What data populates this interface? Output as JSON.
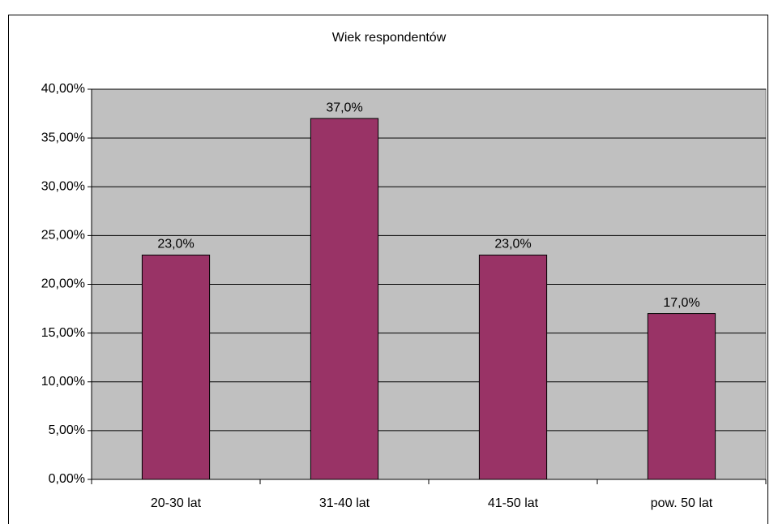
{
  "chart_data": {
    "type": "bar",
    "title": "Wiek respondentów",
    "categories": [
      "20-30 lat",
      "31-40 lat",
      "41-50 lat",
      "pow. 50 lat"
    ],
    "values": [
      23,
      37,
      23,
      17
    ],
    "value_labels": [
      "23,0%",
      "37,0%",
      "23,0%",
      "17,0%"
    ],
    "color": "#993366",
    "ylim": [
      0,
      40
    ],
    "yticks": [
      {
        "value": 0,
        "label": "0,00%"
      },
      {
        "value": 5,
        "label": "5,00%"
      },
      {
        "value": 10,
        "label": "10,00%"
      },
      {
        "value": 15,
        "label": "15,00%"
      },
      {
        "value": 20,
        "label": "20,00%"
      },
      {
        "value": 25,
        "label": "25,00%"
      },
      {
        "value": 30,
        "label": "30,00%"
      },
      {
        "value": 35,
        "label": "35,00%"
      },
      {
        "value": 40,
        "label": "40,00%"
      }
    ],
    "grid": true
  }
}
